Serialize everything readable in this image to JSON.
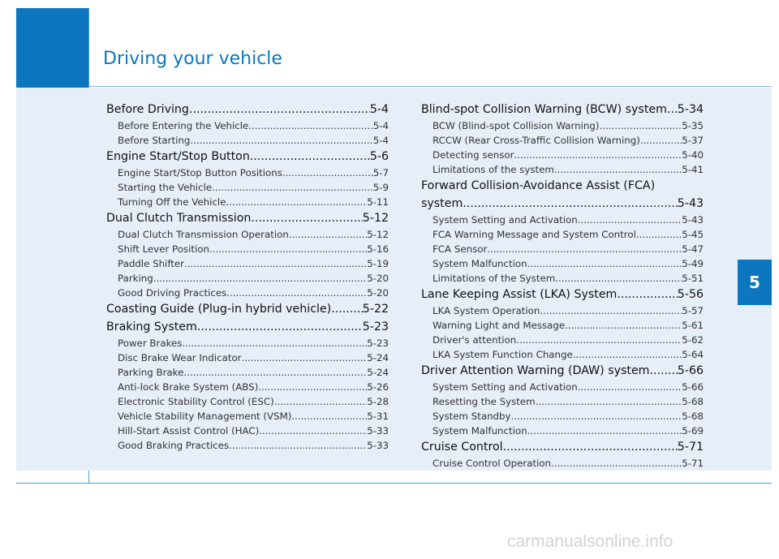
{
  "header": {
    "title": "Driving your vehicle"
  },
  "chapter_tab": "5",
  "toc_left": [
    {
      "kind": "main",
      "title": "Before Driving",
      "page": "5-4"
    },
    {
      "kind": "sub",
      "title": "Before Entering the Vehicle",
      "page": "5-4"
    },
    {
      "kind": "sub",
      "title": "Before Starting",
      "page": "5-4"
    },
    {
      "kind": "main",
      "title": "Engine Start/Stop Button",
      "page": "5-6"
    },
    {
      "kind": "sub",
      "title": "Engine Start/Stop Button Positions",
      "page": "5-7"
    },
    {
      "kind": "sub",
      "title": "Starting the Vehicle",
      "page": "5-9"
    },
    {
      "kind": "sub",
      "title": "Turning Off the Vehicle",
      "page": "5-11"
    },
    {
      "kind": "main",
      "title": "Dual Clutch Transmission",
      "page": "5-12"
    },
    {
      "kind": "sub",
      "title": "Dual Clutch Transmission Operation",
      "page": "5-12"
    },
    {
      "kind": "sub",
      "title": "Shift Lever Position",
      "page": "5-16"
    },
    {
      "kind": "sub",
      "title": "Paddle Shifter",
      "page": "5-19"
    },
    {
      "kind": "sub",
      "title": "Parking",
      "page": "5-20"
    },
    {
      "kind": "sub",
      "title": "Good Driving Practices",
      "page": "5-20"
    },
    {
      "kind": "main",
      "title": "Coasting Guide (Plug-in hybrid vehicle)",
      "page": "5-22"
    },
    {
      "kind": "main",
      "title": "Braking System",
      "page": "5-23"
    },
    {
      "kind": "sub",
      "title": "Power Brakes",
      "page": "5-23"
    },
    {
      "kind": "sub",
      "title": "Disc Brake Wear Indicator",
      "page": "5-24"
    },
    {
      "kind": "sub",
      "title": "Parking Brake",
      "page": "5-24"
    },
    {
      "kind": "sub",
      "title": "Anti-lock Brake System (ABS)",
      "page": "5-26"
    },
    {
      "kind": "sub",
      "title": "Electronic Stability Control (ESC)",
      "page": "5-28"
    },
    {
      "kind": "sub",
      "title": "Vehicle Stability Management (VSM)",
      "page": "5-31"
    },
    {
      "kind": "sub",
      "title": "Hill-Start Assist Control (HAC)",
      "page": "5-33"
    },
    {
      "kind": "sub",
      "title": "Good Braking Practices",
      "page": "5-33"
    }
  ],
  "toc_right": [
    {
      "kind": "main",
      "title": "Blind-spot Collision Warning (BCW) system",
      "page": "5-34"
    },
    {
      "kind": "sub",
      "title": "BCW (Blind-spot Collision Warning)",
      "page": "5-35"
    },
    {
      "kind": "sub",
      "title": "RCCW (Rear Cross-Traffic Collision Warning)",
      "page": "5-37"
    },
    {
      "kind": "sub",
      "title": "Detecting sensor",
      "page": "5-40"
    },
    {
      "kind": "sub",
      "title": "Limitations of the system",
      "page": "5-41"
    },
    {
      "kind": "multi",
      "title": "Forward Collision-Avoidance Assist (FCA)"
    },
    {
      "kind": "main",
      "title": "system",
      "page": "5-43"
    },
    {
      "kind": "sub",
      "title": "System Setting and Activation",
      "page": "5-43"
    },
    {
      "kind": "sub",
      "title": "FCA Warning Message and System Control",
      "page": "5-45"
    },
    {
      "kind": "sub",
      "title": "FCA Sensor",
      "page": "5-47"
    },
    {
      "kind": "sub",
      "title": "System Malfunction",
      "page": "5-49"
    },
    {
      "kind": "sub",
      "title": "Limitations of the System",
      "page": "5-51"
    },
    {
      "kind": "main",
      "title": "Lane Keeping Assist (LKA) System",
      "page": "5-56"
    },
    {
      "kind": "sub",
      "title": "LKA System Operation",
      "page": "5-57"
    },
    {
      "kind": "sub",
      "title": "Warning Light and Message",
      "page": "5-61"
    },
    {
      "kind": "sub",
      "title": "Driver's attention",
      "page": "5-62"
    },
    {
      "kind": "sub",
      "title": "LKA System Function Change",
      "page": "5-64"
    },
    {
      "kind": "main",
      "title": "Driver Attention Warning (DAW) system",
      "page": "5-66"
    },
    {
      "kind": "sub",
      "title": "System Setting and Activation",
      "page": "5-66"
    },
    {
      "kind": "sub",
      "title": "Resetting the System",
      "page": "5-68"
    },
    {
      "kind": "sub",
      "title": "System Standby",
      "page": "5-68"
    },
    {
      "kind": "sub",
      "title": "System Malfunction",
      "page": "5-69"
    },
    {
      "kind": "main",
      "title": "Cruise Control",
      "page": "5-71"
    },
    {
      "kind": "sub",
      "title": "Cruise Control Operation",
      "page": "5-71"
    }
  ],
  "watermark": "carmanualsonline.info"
}
